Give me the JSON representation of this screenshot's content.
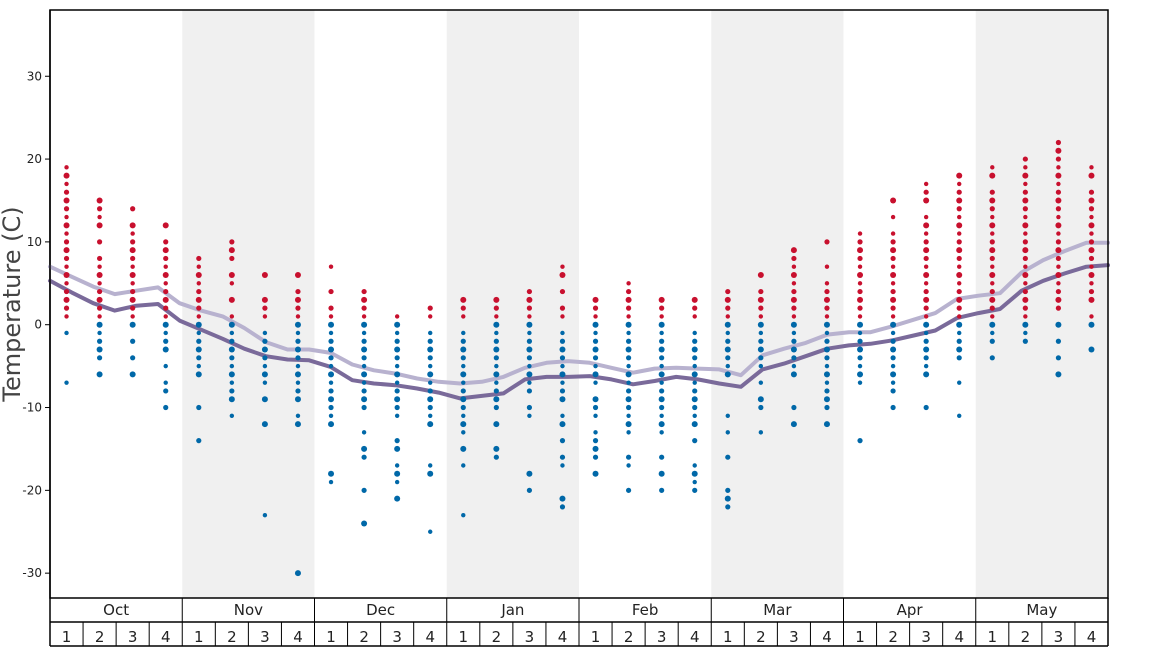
{
  "chart_data": {
    "type": "scatter",
    "ylabel": "Temperature (C)",
    "ylim": [
      -33,
      38
    ],
    "y_ticks": [
      -30,
      -20,
      -10,
      0,
      10,
      20,
      30
    ],
    "months": [
      "Oct",
      "Nov",
      "Dec",
      "Jan",
      "Feb",
      "Mar",
      "Apr",
      "May"
    ],
    "weeks": [
      "1",
      "2",
      "3",
      "4"
    ],
    "colors": {
      "warm_dot": "#c8102e",
      "cold_dot": "#0068a8",
      "band_shade": "#f0f0f0",
      "line_max": "#b8b2cf",
      "line_min": "#7a6a9a"
    },
    "line_max": [
      7,
      5.8,
      4.6,
      3.7,
      4.1,
      4.5,
      2.6,
      1.7,
      1,
      -0.4,
      -2.1,
      -3,
      -3,
      -3.4,
      -4.8,
      -5.5,
      -5.9,
      -6.5,
      -6.9,
      -7.1,
      -6.9,
      -6.3,
      -5.2,
      -4.6,
      -4.4,
      -4.6,
      -5.2,
      -5.8,
      -5.3,
      -5.2,
      -5.3,
      -5.4,
      -6.1,
      -3.7,
      -2.9,
      -2.2,
      -1.2,
      -0.9,
      -0.9,
      -0.2,
      0.6,
      1.4,
      3.1,
      3.5,
      3.8,
      6.3,
      7.8,
      8.9,
      9.9,
      9.9
    ],
    "line_min": [
      5.3,
      3.9,
      2.6,
      1.7,
      2.3,
      2.5,
      0.5,
      -0.6,
      -1.7,
      -2.9,
      -3.8,
      -4.2,
      -4.3,
      -5.1,
      -6.7,
      -7.1,
      -7.3,
      -7.7,
      -8.2,
      -8.9,
      -8.6,
      -8.3,
      -6.6,
      -6.3,
      -6.3,
      -6.2,
      -6.6,
      -7.2,
      -6.8,
      -6.3,
      -6.6,
      -7.1,
      -7.5,
      -5.4,
      -4.7,
      -3.8,
      -2.9,
      -2.5,
      -2.3,
      -1.9,
      -1.3,
      -0.7,
      0.8,
      1.4,
      1.9,
      4.1,
      5.3,
      6.2,
      7,
      7.2
    ],
    "week_dots": [
      {
        "week": 1,
        "warm": [
          19,
          18,
          17,
          16,
          15,
          14,
          13,
          12,
          11,
          10,
          9,
          8,
          7,
          6,
          5,
          4,
          3,
          2,
          1
        ],
        "cold": [
          -1,
          -7
        ]
      },
      {
        "week": 2,
        "warm": [
          15,
          14,
          13,
          12,
          10,
          8,
          7,
          6,
          5,
          4,
          3,
          2,
          1
        ],
        "cold": [
          0,
          -1,
          -2,
          -3,
          -4,
          -6
        ]
      },
      {
        "week": 3,
        "warm": [
          14,
          12,
          11,
          10,
          9,
          8,
          7,
          6,
          5,
          4,
          3,
          2,
          1
        ],
        "cold": [
          0,
          -2,
          -4,
          -6
        ]
      },
      {
        "week": 4,
        "warm": [
          12,
          10,
          9,
          8,
          7,
          6,
          5,
          4,
          3,
          2,
          1
        ],
        "cold": [
          0,
          -1,
          -2,
          -3,
          -5,
          -7,
          -8,
          -10
        ]
      },
      {
        "week": 5,
        "warm": [
          8,
          7,
          6,
          5,
          4,
          3,
          2,
          1
        ],
        "cold": [
          0,
          -1,
          -2,
          -3,
          -4,
          -5,
          -6,
          -10,
          -14
        ]
      },
      {
        "week": 6,
        "warm": [
          10,
          9,
          8,
          6,
          5,
          3,
          1
        ],
        "cold": [
          0,
          -1,
          -2,
          -3,
          -4,
          -5,
          -6,
          -7,
          -8,
          -9,
          -11
        ]
      },
      {
        "week": 7,
        "warm": [
          6,
          3,
          2,
          1
        ],
        "cold": [
          -1,
          -2,
          -3,
          -4,
          -5,
          -6,
          -7,
          -9,
          -12,
          -23
        ]
      },
      {
        "week": 8,
        "warm": [
          6,
          4,
          3,
          2,
          1
        ],
        "cold": [
          0,
          -1,
          -2,
          -3,
          -4,
          -5,
          -6,
          -7,
          -8,
          -9,
          -11,
          -12,
          -30
        ]
      },
      {
        "week": 9,
        "warm": [
          7,
          4,
          2,
          1
        ],
        "cold": [
          0,
          -1,
          -2,
          -3,
          -4,
          -5,
          -6,
          -7,
          -8,
          -9,
          -10,
          -11,
          -12,
          -18,
          -19
        ]
      },
      {
        "week": 10,
        "warm": [
          4,
          3,
          2,
          1
        ],
        "cold": [
          0,
          -1,
          -2,
          -3,
          -4,
          -5,
          -6,
          -7,
          -8,
          -9,
          -10,
          -13,
          -15,
          -16,
          -20,
          -24
        ]
      },
      {
        "week": 11,
        "warm": [
          1
        ],
        "cold": [
          0,
          -1,
          -2,
          -3,
          -4,
          -5,
          -6,
          -7,
          -8,
          -9,
          -10,
          -11,
          -14,
          -15,
          -17,
          -18,
          -19,
          -21
        ]
      },
      {
        "week": 12,
        "warm": [
          2,
          1
        ],
        "cold": [
          -1,
          -2,
          -3,
          -4,
          -5,
          -6,
          -7,
          -8,
          -9,
          -10,
          -11,
          -12,
          -17,
          -18,
          -25
        ]
      },
      {
        "week": 13,
        "warm": [
          3,
          2,
          1
        ],
        "cold": [
          -1,
          -2,
          -3,
          -4,
          -5,
          -6,
          -7,
          -8,
          -9,
          -10,
          -11,
          -12,
          -13,
          -15,
          -17,
          -23
        ]
      },
      {
        "week": 14,
        "warm": [
          3,
          2,
          1
        ],
        "cold": [
          0,
          -1,
          -2,
          -3,
          -4,
          -5,
          -6,
          -7,
          -8,
          -9,
          -10,
          -12,
          -15,
          -16
        ]
      },
      {
        "week": 15,
        "warm": [
          4,
          3,
          2,
          1
        ],
        "cold": [
          0,
          -1,
          -2,
          -3,
          -4,
          -5,
          -6,
          -7,
          -8,
          -10,
          -11,
          -18,
          -20
        ]
      },
      {
        "week": 16,
        "warm": [
          7,
          6,
          4,
          2,
          1
        ],
        "cold": [
          -1,
          -2,
          -3,
          -4,
          -5,
          -6,
          -7,
          -8,
          -9,
          -11,
          -12,
          -14,
          -16,
          -17,
          -21,
          -22
        ]
      },
      {
        "week": 17,
        "warm": [
          3,
          2,
          1
        ],
        "cold": [
          0,
          -1,
          -2,
          -3,
          -4,
          -5,
          -6,
          -7,
          -9,
          -10,
          -11,
          -13,
          -14,
          -15,
          -16,
          -18
        ]
      },
      {
        "week": 18,
        "warm": [
          5,
          4,
          3,
          2,
          1
        ],
        "cold": [
          0,
          -1,
          -2,
          -3,
          -4,
          -5,
          -6,
          -7,
          -8,
          -9,
          -10,
          -11,
          -12,
          -13,
          -16,
          -17,
          -20
        ]
      },
      {
        "week": 19,
        "warm": [
          3,
          2,
          1
        ],
        "cold": [
          0,
          -1,
          -2,
          -3,
          -4,
          -5,
          -6,
          -7,
          -8,
          -9,
          -10,
          -11,
          -12,
          -13,
          -16,
          -18,
          -20
        ]
      },
      {
        "week": 20,
        "warm": [
          3,
          2,
          1
        ],
        "cold": [
          -1,
          -2,
          -3,
          -4,
          -5,
          -6,
          -7,
          -8,
          -9,
          -10,
          -11,
          -12,
          -14,
          -17,
          -18,
          -19,
          -20
        ]
      },
      {
        "week": 21,
        "warm": [
          4,
          3,
          2,
          1
        ],
        "cold": [
          0,
          -1,
          -2,
          -3,
          -4,
          -5,
          -6,
          -11,
          -13,
          -16,
          -20,
          -21,
          -22
        ]
      },
      {
        "week": 22,
        "warm": [
          6,
          4,
          3,
          2,
          1
        ],
        "cold": [
          0,
          -1,
          -2,
          -3,
          -4,
          -5,
          -7,
          -9,
          -10,
          -13
        ]
      },
      {
        "week": 23,
        "warm": [
          9,
          8,
          7,
          6,
          5,
          4,
          3,
          2,
          1
        ],
        "cold": [
          0,
          -1,
          -2,
          -3,
          -4,
          -5,
          -6,
          -10,
          -12
        ]
      },
      {
        "week": 24,
        "warm": [
          10,
          7,
          5,
          4,
          3,
          2,
          1
        ],
        "cold": [
          0,
          -1,
          -2,
          -3,
          -4,
          -5,
          -6,
          -7,
          -8,
          -9,
          -10,
          -12
        ]
      },
      {
        "week": 25,
        "warm": [
          11,
          10,
          9,
          8,
          7,
          6,
          5,
          4,
          3,
          2,
          1
        ],
        "cold": [
          0,
          -1,
          -2,
          -3,
          -4,
          -5,
          -6,
          -7,
          -14
        ]
      },
      {
        "week": 26,
        "warm": [
          15,
          13,
          11,
          10,
          9,
          8,
          7,
          6,
          5,
          4,
          3,
          2,
          1
        ],
        "cold": [
          0,
          -1,
          -2,
          -3,
          -4,
          -5,
          -6,
          -7,
          -8,
          -10
        ]
      },
      {
        "week": 27,
        "warm": [
          17,
          16,
          15,
          13,
          12,
          11,
          10,
          9,
          8,
          7,
          6,
          5,
          4,
          3,
          2,
          1
        ],
        "cold": [
          0,
          -1,
          -2,
          -3,
          -4,
          -5,
          -6,
          -10
        ]
      },
      {
        "week": 28,
        "warm": [
          18,
          17,
          16,
          15,
          14,
          13,
          12,
          11,
          10,
          9,
          8,
          7,
          6,
          5,
          4,
          3,
          2,
          1
        ],
        "cold": [
          0,
          -1,
          -2,
          -3,
          -4,
          -7,
          -11
        ]
      },
      {
        "week": 29,
        "warm": [
          19,
          18,
          16,
          15,
          14,
          13,
          12,
          11,
          10,
          9,
          8,
          7,
          6,
          5,
          4,
          3,
          2,
          1
        ],
        "cold": [
          0,
          -1,
          -2,
          -4
        ]
      },
      {
        "week": 30,
        "warm": [
          20,
          19,
          18,
          17,
          16,
          15,
          14,
          13,
          12,
          11,
          10,
          9,
          8,
          7,
          6,
          5,
          4,
          3,
          2,
          1
        ],
        "cold": [
          0,
          -1,
          -2
        ]
      },
      {
        "week": 31,
        "warm": [
          22,
          21,
          20,
          19,
          18,
          17,
          16,
          15,
          14,
          13,
          12,
          11,
          10,
          9,
          8,
          7,
          6,
          5,
          4,
          3,
          2
        ],
        "cold": [
          0,
          -2,
          -4,
          -6
        ]
      },
      {
        "week": 32,
        "warm": [
          19,
          18,
          16,
          15,
          14,
          13,
          12,
          11,
          10,
          9,
          8,
          7,
          6,
          5,
          4,
          3,
          1
        ],
        "cold": [
          0,
          -3
        ]
      }
    ]
  }
}
